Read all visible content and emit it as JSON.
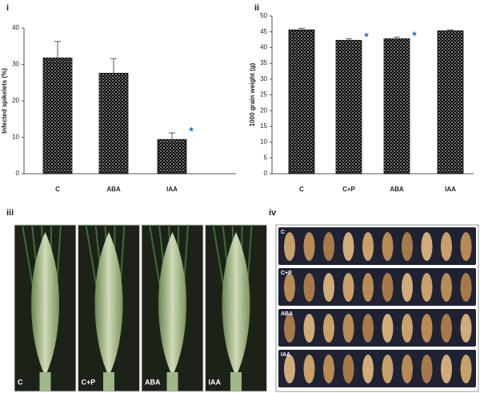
{
  "chart_data": [
    {
      "type": "bar",
      "panel": "i",
      "ylabel": "Infected spikelets (%)",
      "categories": [
        "C",
        "ABA",
        "IAA"
      ],
      "values": [
        31.8,
        27.6,
        9.4
      ],
      "errors": [
        4.5,
        4.0,
        1.8
      ],
      "color": "#111111",
      "ylim": [
        0,
        40
      ],
      "yticks": [
        0,
        10,
        20,
        30,
        40
      ],
      "significant": [
        "IAA"
      ],
      "significance_marker": "★",
      "marker_color": "#2a6db5"
    },
    {
      "type": "bar",
      "panel": "ii",
      "ylabel": "1000 grain weight (g)",
      "categories": [
        "C",
        "C+P",
        "ABA",
        "IAA"
      ],
      "values": [
        45.6,
        42.3,
        42.8,
        45.3
      ],
      "errors": [
        0.5,
        0.5,
        0.5,
        0.3
      ],
      "color": "#111111",
      "ylim": [
        0,
        50
      ],
      "yticks": [
        0,
        5,
        10,
        15,
        20,
        25,
        30,
        35,
        40,
        45,
        50
      ],
      "significant": [
        "C+P",
        "ABA"
      ],
      "significance_marker": "★",
      "marker_color": "#2a6db5"
    }
  ],
  "photos": [
    {
      "panel": "iii",
      "labels": [
        "C",
        "C+P",
        "ABA",
        "IAA"
      ]
    },
    {
      "panel": "iv",
      "labels": [
        "C",
        "C+P",
        "ABA",
        "IAA"
      ]
    }
  ]
}
